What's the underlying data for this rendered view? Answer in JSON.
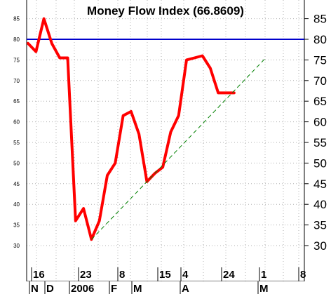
{
  "chart_data": {
    "type": "line",
    "title": "Money Flow Index (66.8609)",
    "ylim": [
      25,
      90
    ],
    "yticks": [
      30,
      35,
      40,
      45,
      50,
      55,
      60,
      65,
      70,
      75,
      80,
      85
    ],
    "grid": true,
    "x_day_labels": [
      "16",
      "23",
      "8",
      "15",
      "4",
      "24",
      "1",
      "8"
    ],
    "x_month_labels": [
      "N",
      "D",
      "2006",
      "F",
      "M",
      "A",
      "M"
    ],
    "series": [
      {
        "color": "#ff0000",
        "x": [
          0,
          1,
          2,
          3,
          4,
          5,
          6,
          7,
          8,
          9,
          10,
          11,
          12,
          13,
          14,
          15,
          16,
          17,
          18,
          19,
          20,
          21,
          22,
          23,
          24,
          25,
          26
        ],
        "values": [
          79,
          77,
          85,
          79,
          75.5,
          75.5,
          36,
          39,
          31.5,
          36,
          47,
          50,
          61.5,
          62.5,
          57,
          45.5,
          47.5,
          49,
          57.5,
          61.5,
          75,
          75.5,
          76,
          73,
          67,
          67,
          67
        ]
      },
      {
        "color": "#008000",
        "style": "dashed",
        "x": [
          8,
          30
        ],
        "values": [
          31.5,
          75.5
        ]
      }
    ],
    "reference_line": {
      "value": 80,
      "color": "#0000cc"
    }
  }
}
